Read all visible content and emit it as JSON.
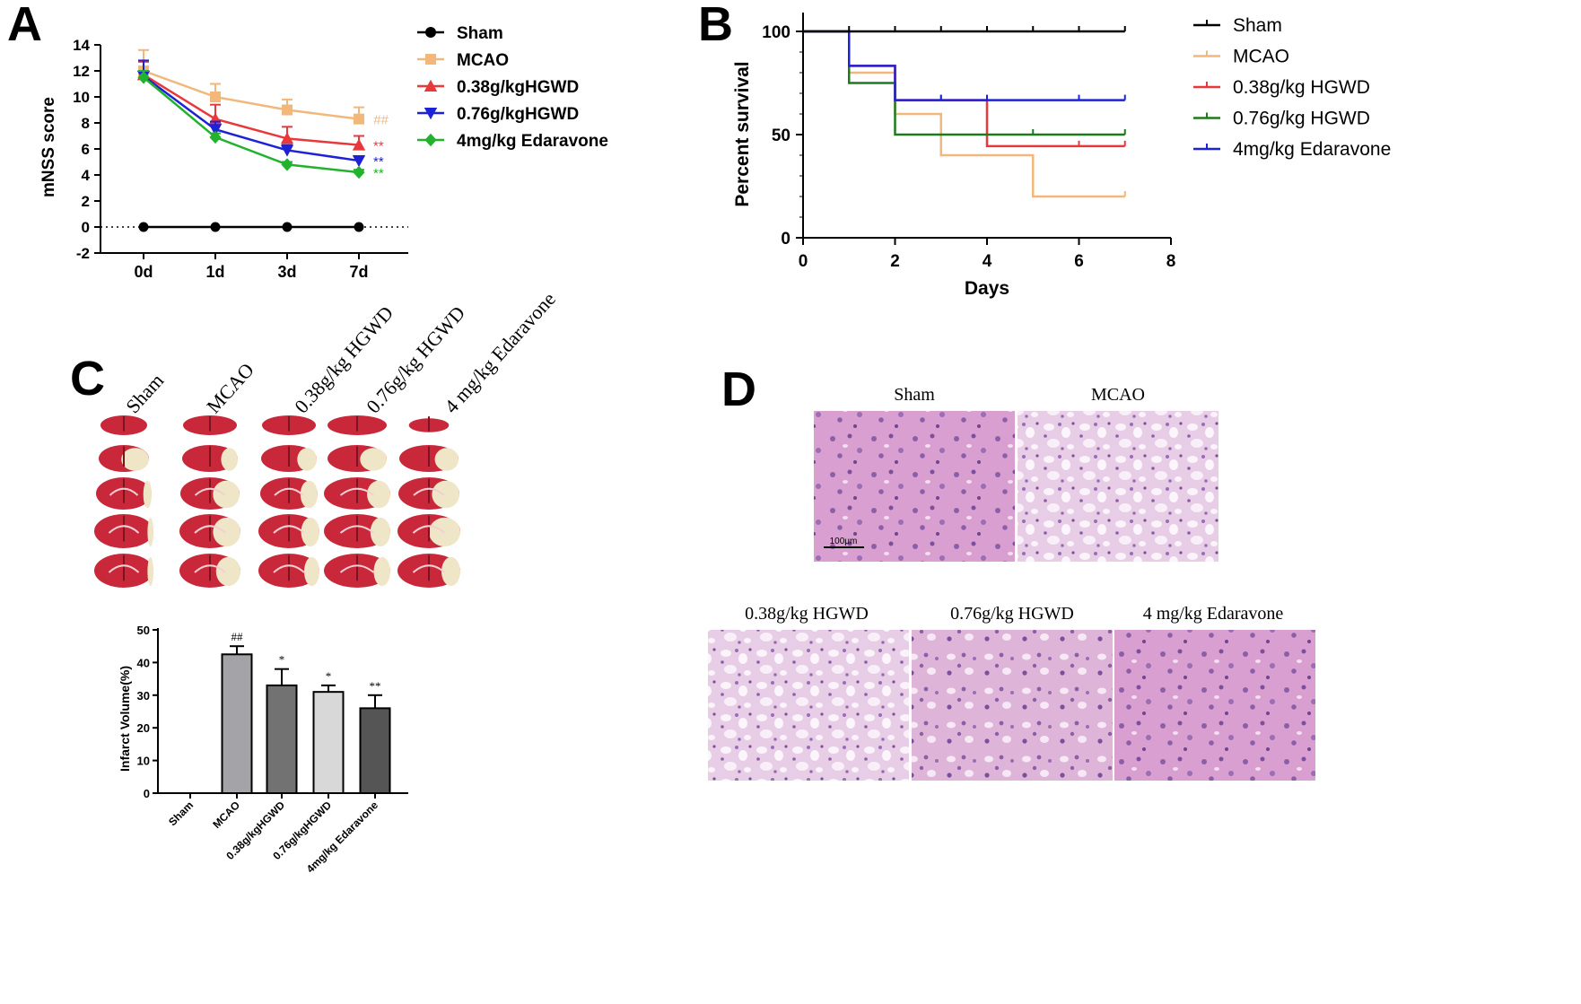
{
  "panel_labels": {
    "a": "A",
    "b": "B",
    "c": "C",
    "d": "D"
  },
  "colors": {
    "sham": "#000000",
    "mcao": "#f2b77a",
    "hgwd038": "#e8383b",
    "hgwd076": "#1e22d6",
    "edaravone": "#22b22e",
    "hgwd076_survival": "#1e7a1e",
    "bar_mcao": "#a3a3a8",
    "bar_038": "#727272",
    "bar_076": "#d8d8d8",
    "bar_edaravone": "#555555",
    "he_stain": "#d9a2cf",
    "tissue_red": "#c8283a",
    "tissue_pale": "#efe6c8"
  },
  "chart_data": [
    {
      "id": "A",
      "type": "line",
      "title": "",
      "xlabel": "",
      "ylabel": "mNSS score",
      "categories": [
        "0d",
        "1d",
        "3d",
        "7d"
      ],
      "ylim": [
        -2,
        14
      ],
      "yticks": [
        "-2",
        "0",
        "2",
        "4",
        "6",
        "8",
        "10",
        "12",
        "14"
      ],
      "legend_position": "right",
      "series": [
        {
          "name": "Sham",
          "values": [
            0,
            0,
            0,
            0
          ],
          "error": [
            0,
            0,
            0,
            0
          ],
          "marker": "circle",
          "annotation": ""
        },
        {
          "name": "MCAO",
          "values": [
            12.0,
            10.0,
            9.0,
            8.3
          ],
          "error": [
            1.6,
            1.0,
            0.8,
            0.9
          ],
          "marker": "square",
          "annotation": "##"
        },
        {
          "name": "0.38g/kgHGWD",
          "values": [
            11.7,
            8.3,
            6.8,
            6.3
          ],
          "error": [
            1.0,
            1.1,
            0.9,
            0.7
          ],
          "marker": "triangle-up",
          "annotation": "**"
        },
        {
          "name": "0.76g/kgHGWD",
          "values": [
            11.6,
            7.5,
            5.9,
            5.1
          ],
          "error": [
            1.2,
            0.6,
            0.4,
            0.3
          ],
          "marker": "triangle-down",
          "annotation": "**"
        },
        {
          "name": "4mg/kg Edaravone",
          "values": [
            11.5,
            6.9,
            4.8,
            4.2
          ],
          "error": [
            0.5,
            0.3,
            0.2,
            0.2
          ],
          "marker": "diamond",
          "annotation": "**"
        }
      ]
    },
    {
      "id": "B",
      "type": "line",
      "title": "",
      "xlabel": "Days",
      "ylabel": "Percent survival",
      "xlim": [
        0,
        8
      ],
      "ylim": [
        0,
        100
      ],
      "xticks": [
        "0",
        "2",
        "4",
        "6",
        "8"
      ],
      "yticks": [
        "0",
        "50",
        "100"
      ],
      "legend_position": "right",
      "series": [
        {
          "name": "Sham",
          "x": [
            0,
            7
          ],
          "y": [
            100,
            100
          ],
          "ticks": [
            1,
            2,
            3,
            4,
            5,
            6,
            7
          ]
        },
        {
          "name": "MCAO",
          "x": [
            0,
            1,
            2,
            3,
            5,
            7
          ],
          "y": [
            100,
            80,
            60,
            40,
            20,
            20
          ],
          "ticks": [
            7
          ]
        },
        {
          "name": "0.38g/kg HGWD",
          "x": [
            0,
            1,
            2,
            4,
            7
          ],
          "y": [
            100,
            83.3,
            66.7,
            44.4,
            44.4
          ],
          "ticks": [
            3,
            6,
            7
          ]
        },
        {
          "name": "0.76g/kg HGWD",
          "x": [
            0,
            1,
            2,
            7
          ],
          "y": [
            100,
            75,
            50,
            50
          ],
          "ticks": [
            5,
            7
          ]
        },
        {
          "name": "4mg/kg Edaravone",
          "x": [
            0,
            1,
            2,
            7
          ],
          "y": [
            100,
            83.3,
            66.7,
            66.7
          ],
          "ticks": [
            3,
            4,
            6,
            7
          ]
        }
      ]
    },
    {
      "id": "C-bar",
      "type": "bar",
      "title": "",
      "xlabel": "",
      "ylabel": "Infarct Volume(%)",
      "categories": [
        "Sham",
        "MCAO",
        "0.38g/kgHGWD",
        "0.76g/kgHGWD",
        "4mg/kg Edaravone"
      ],
      "values": [
        0,
        42.5,
        33,
        31,
        26
      ],
      "error": [
        0,
        2.5,
        5,
        2,
        4
      ],
      "annotations": [
        "",
        "##",
        "*",
        "*",
        "**"
      ],
      "ylim": [
        0,
        50
      ],
      "yticks": [
        "0",
        "10",
        "20",
        "30",
        "40",
        "50"
      ]
    }
  ],
  "panel_c": {
    "column_labels": [
      "Sham",
      "MCAO",
      "0.38g/kg HGWD",
      "0.76g/kg HGWD",
      "4 mg/kg Edaravone"
    ],
    "pale_fraction": [
      [
        0,
        0,
        0,
        0,
        0
      ],
      [
        0.55,
        0.3,
        0.35,
        0.45,
        0.4
      ],
      [
        0.15,
        0.45,
        0.3,
        0.35,
        0.45
      ],
      [
        0.1,
        0.45,
        0.3,
        0.3,
        0.5
      ],
      [
        0.1,
        0.4,
        0.25,
        0.25,
        0.3
      ]
    ]
  },
  "panel_d": {
    "top_labels": [
      "Sham",
      "MCAO"
    ],
    "bottom_labels": [
      "0.38g/kg HGWD",
      "0.76g/kg HGWD",
      "4 mg/kg Edaravone"
    ],
    "scale_bar_label": "100μm"
  }
}
